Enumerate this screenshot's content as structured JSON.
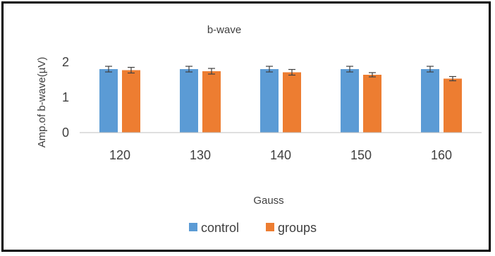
{
  "chart_data": {
    "type": "bar",
    "title": "b-wave",
    "xlabel": "Gauss",
    "ylabel": "Amp.of b-wave(µV)",
    "categories": [
      "120",
      "130",
      "140",
      "150",
      "160"
    ],
    "ylim": [
      0,
      2
    ],
    "yticks": [
      "0",
      "1",
      "2"
    ],
    "grid": false,
    "legend_position": "bottom",
    "series": [
      {
        "name": "control",
        "color": "#5B9BD5",
        "values": [
          1.8,
          1.8,
          1.8,
          1.8,
          1.8
        ],
        "errors": [
          0.08,
          0.08,
          0.08,
          0.08,
          0.08
        ]
      },
      {
        "name": "groups",
        "color": "#ED7D31",
        "values": [
          1.77,
          1.74,
          1.71,
          1.64,
          1.53
        ],
        "errors": [
          0.08,
          0.08,
          0.08,
          0.06,
          0.06
        ]
      }
    ]
  }
}
